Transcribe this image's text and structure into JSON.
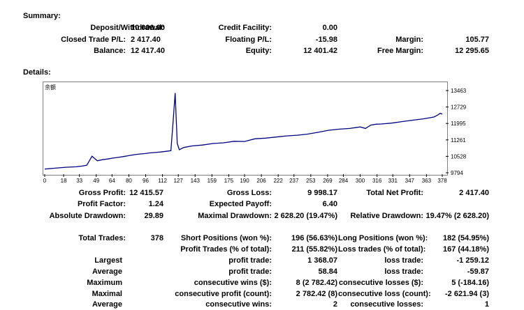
{
  "summary": {
    "title": "Summary:",
    "deposit_label": "Deposit/Withdrawal:",
    "deposit_value": "10 000.00",
    "closed_label": "Closed Trade P/L:",
    "closed_value": "2 417.40",
    "balance_label": "Balance:",
    "balance_value": "12 417.40",
    "credit_label": "Credit Facility:",
    "credit_value": "0.00",
    "floating_label": "Floating P/L:",
    "floating_value": "-15.98",
    "equity_label": "Equity:",
    "equity_value": "12 401.42",
    "margin_label": "Margin:",
    "margin_value": "105.77",
    "free_margin_label": "Free Margin:",
    "free_margin_value": "12 295.65"
  },
  "details": {
    "title": "Details:"
  },
  "chart_data": {
    "type": "line",
    "title": "余额",
    "xticks": [
      "0",
      "18",
      "33",
      "49",
      "64",
      "80",
      "96",
      "112",
      "127",
      "143",
      "159",
      "175",
      "190",
      "206",
      "222",
      "237",
      "253",
      "269",
      "284",
      "300",
      "316",
      "331",
      "347",
      "363",
      "378"
    ],
    "yticks": [
      "13463",
      "12729",
      "11995",
      "11261",
      "10528",
      "9794"
    ],
    "xlim": [
      0,
      378
    ],
    "ylim": [
      9794,
      13463
    ],
    "grid": false,
    "legend": "none",
    "color": "#000080",
    "series": [
      {
        "x": [
          0,
          10,
          20,
          30,
          35,
          40,
          45,
          50,
          55,
          60,
          65,
          70,
          75,
          80,
          85,
          90,
          95,
          100,
          105,
          110,
          115,
          120,
          122,
          124,
          126,
          128,
          132,
          140,
          150,
          160,
          170,
          180,
          190,
          200,
          210,
          220,
          230,
          240,
          250,
          260,
          270,
          280,
          290,
          300,
          305,
          310,
          315,
          320,
          330,
          340,
          350,
          360,
          370,
          374,
          376,
          378
        ],
        "y": [
          9960,
          10000,
          10040,
          10060,
          10090,
          10130,
          10530,
          10330,
          10380,
          10410,
          10450,
          10480,
          10520,
          10560,
          10600,
          10630,
          10650,
          10680,
          10700,
          10720,
          10750,
          10780,
          12000,
          13350,
          11100,
          10820,
          10920,
          10990,
          11030,
          11100,
          11130,
          11200,
          11190,
          11310,
          11340,
          11390,
          11440,
          11470,
          11520,
          11600,
          11690,
          11740,
          11770,
          11840,
          11770,
          11920,
          11960,
          11970,
          12010,
          12080,
          12140,
          12200,
          12280,
          12380,
          12450,
          12410
        ]
      }
    ]
  },
  "stats": {
    "gross_profit_label": "Gross Profit:",
    "gross_profit_value": "12 415.57",
    "gross_loss_label": "Gross Loss:",
    "gross_loss_value": "9 998.17",
    "net_profit_label": "Total Net Profit:",
    "net_profit_value": "2 417.40",
    "profit_factor_label": "Profit Factor:",
    "profit_factor_value": "1.24",
    "expected_payoff_label": "Expected Payoff:",
    "expected_payoff_value": "6.40",
    "abs_dd_label": "Absolute Drawdown:",
    "abs_dd_value": "29.89",
    "max_dd_label": "Maximal Drawdown:",
    "max_dd_value": "2 628.20 (19.47%)",
    "rel_dd_label": "Relative Drawdown:",
    "rel_dd_value": "19.47% (2 628.20)",
    "total_trades_label": "Total Trades:",
    "total_trades_value": "378",
    "short_label": "Short Positions (won %):",
    "short_value": "196 (56.63%)",
    "long_label": "Long Positions (won %):",
    "long_value": "182 (54.95%)",
    "profit_trades_label": "Profit Trades (% of total):",
    "profit_trades_value": "211 (55.82%)",
    "loss_trades_label": "Loss trades (% of total):",
    "loss_trades_value": "167 (44.18%)",
    "largest_label": "Largest",
    "largest_profit_label": "profit trade:",
    "largest_profit_value": "1 368.07",
    "largest_loss_label": "loss trade:",
    "largest_loss_value": "-1 259.12",
    "average_label": "Average",
    "average_profit_label": "profit trade:",
    "average_profit_value": "58.84",
    "average_loss_label": "loss trade:",
    "average_loss_value": "-59.87",
    "maximum_label": "Maximum",
    "max_wins_label": "consecutive wins ($):",
    "max_wins_value": "8 (2 782.42)",
    "max_losses_label": "consecutive losses ($):",
    "max_losses_value": "5 (-184.16)",
    "maximal_label": "Maximal",
    "maximal_profit_label": "consecutive profit (count):",
    "maximal_profit_value": "2 782.42 (8)",
    "maximal_loss_label": "consecutive loss (count):",
    "maximal_loss_value": "-2 621.94 (3)",
    "average2_label": "Average",
    "avg_cons_wins_label": "consecutive wins:",
    "avg_cons_wins_value": "2",
    "avg_cons_losses_label": "consecutive losses:",
    "avg_cons_losses_value": "1"
  }
}
